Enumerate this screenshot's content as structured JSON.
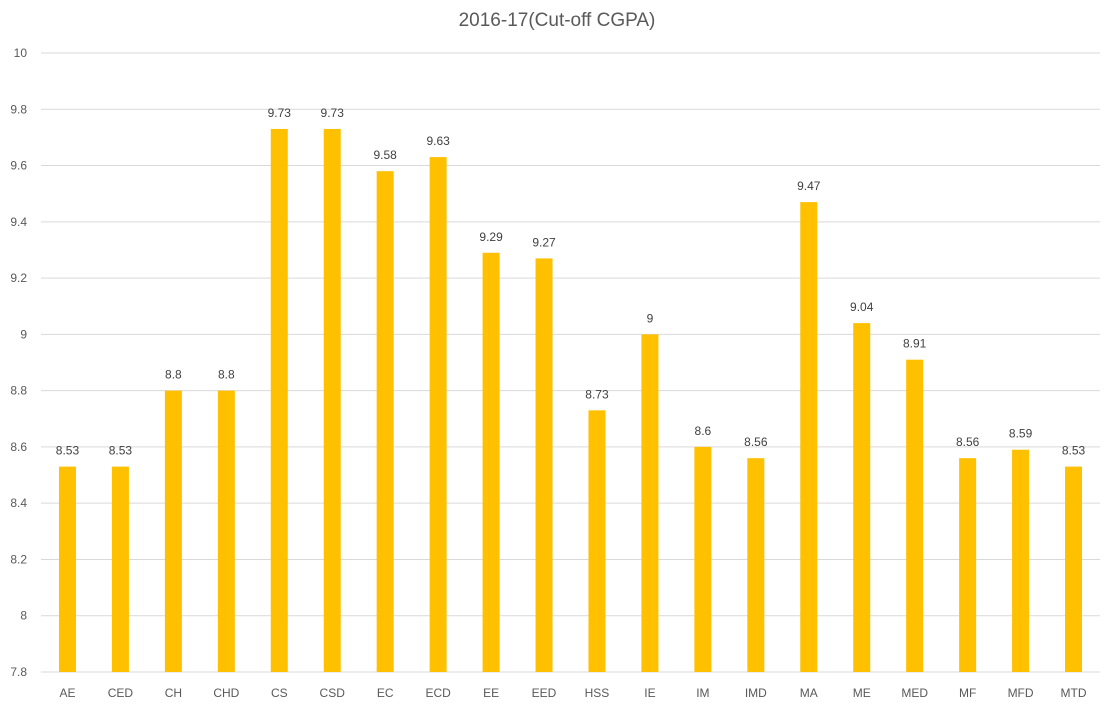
{
  "chart_data": {
    "type": "bar",
    "title": "2016-17(Cut-off CGPA)",
    "xlabel": "",
    "ylabel": "",
    "categories": [
      "AE",
      "CED",
      "CH",
      "CHD",
      "CS",
      "CSD",
      "EC",
      "ECD",
      "EE",
      "EED",
      "HSS",
      "IE",
      "IM",
      "IMD",
      "MA",
      "ME",
      "MED",
      "MF",
      "MFD",
      "MTD"
    ],
    "values": [
      8.53,
      8.53,
      8.8,
      8.8,
      9.73,
      9.73,
      9.58,
      9.63,
      9.29,
      9.27,
      8.73,
      9,
      8.6,
      8.56,
      9.47,
      9.04,
      8.91,
      8.56,
      8.59,
      8.53
    ],
    "value_labels": [
      "8.53",
      "8.53",
      "8.8",
      "8.8",
      "9.73",
      "9.73",
      "9.58",
      "9.63",
      "9.29",
      "9.27",
      "8.73",
      "9",
      "8.6",
      "8.56",
      "9.47",
      "9.04",
      "8.91",
      "8.56",
      "8.59",
      "8.53"
    ],
    "ylim": [
      7.8,
      10
    ],
    "y_ticks": [
      "7.8",
      "8",
      "8.2",
      "8.4",
      "8.6",
      "8.8",
      "9",
      "9.2",
      "9.4",
      "9.6",
      "9.8",
      "10"
    ],
    "grid": true,
    "legend": "none",
    "bar_color": "#FFC000"
  }
}
